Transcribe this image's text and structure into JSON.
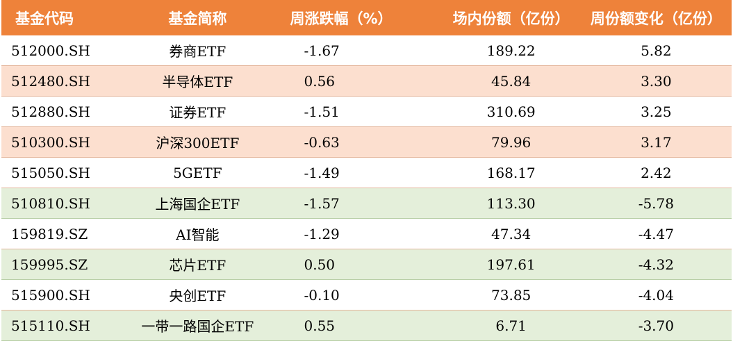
{
  "table": {
    "headers": {
      "code": "基金代码",
      "name": "基金简称",
      "weekly_change": "周涨跌幅（%）",
      "shares": "场内份额（亿份）",
      "weekly_share_change": "周份额变化（亿份）"
    },
    "rows": [
      {
        "code": "512000.SH",
        "name": "券商ETF",
        "weekly_change": "-1.67",
        "shares": "189.22",
        "weekly_share_change": "5.82"
      },
      {
        "code": "512480.SH",
        "name": "半导体ETF",
        "weekly_change": "0.56",
        "shares": "45.84",
        "weekly_share_change": "3.30"
      },
      {
        "code": "512880.SH",
        "name": "证券ETF",
        "weekly_change": "-1.51",
        "shares": "310.69",
        "weekly_share_change": "3.25"
      },
      {
        "code": "510300.SH",
        "name": "沪深300ETF",
        "weekly_change": "-0.63",
        "shares": "79.96",
        "weekly_share_change": "3.17"
      },
      {
        "code": "515050.SH",
        "name": "5GETF",
        "weekly_change": "-1.49",
        "shares": "168.17",
        "weekly_share_change": "2.42"
      },
      {
        "code": "510810.SH",
        "name": "上海国企ETF",
        "weekly_change": "-1.57",
        "shares": "113.30",
        "weekly_share_change": "-5.78"
      },
      {
        "code": "159819.SZ",
        "name": "AI智能",
        "weekly_change": "-1.29",
        "shares": "47.34",
        "weekly_share_change": "-4.47"
      },
      {
        "code": "159995.SZ",
        "name": "芯片ETF",
        "weekly_change": "0.50",
        "shares": "197.61",
        "weekly_share_change": "-4.32"
      },
      {
        "code": "515900.SH",
        "name": "央创ETF",
        "weekly_change": "-0.10",
        "shares": "73.85",
        "weekly_share_change": "-4.04"
      },
      {
        "code": "515110.SH",
        "name": "一带一路国企ETF",
        "weekly_change": "0.55",
        "shares": "6.71",
        "weekly_share_change": "-3.70"
      }
    ]
  },
  "colors": {
    "header_bg": "#ee823a",
    "inflow_row_bg": "#fcdfcf",
    "outflow_row_bg": "#e4efda"
  }
}
